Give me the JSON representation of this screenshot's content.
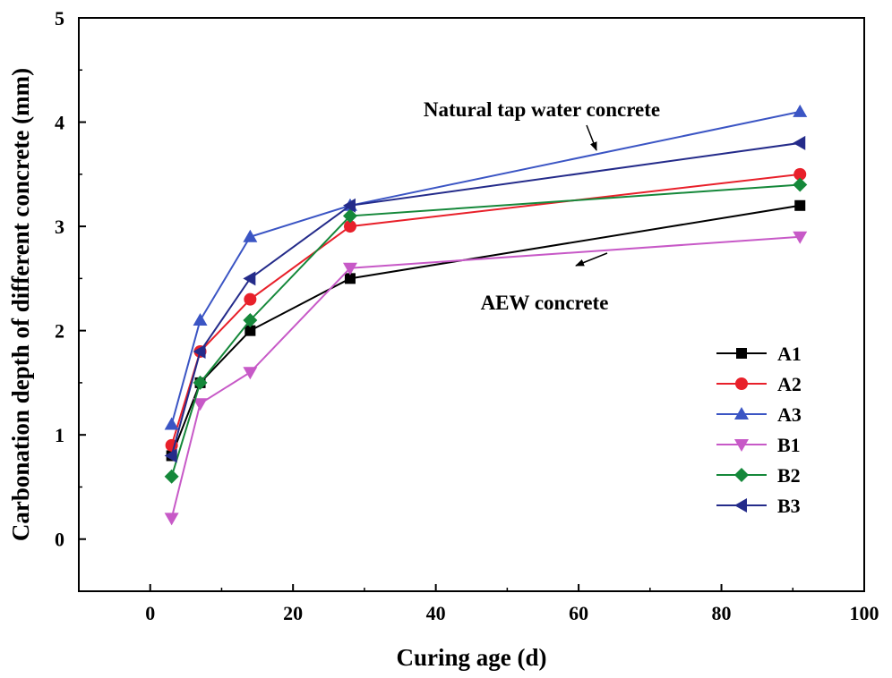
{
  "chart_data": {
    "type": "line",
    "title": "",
    "xlabel": "Curing age (d)",
    "ylabel": "Carbonation depth of different concrete (mm)",
    "xlim": [
      -10,
      100
    ],
    "ylim": [
      -0.5,
      5
    ],
    "xticks": [
      0,
      20,
      40,
      60,
      80,
      100
    ],
    "yticks": [
      0,
      1,
      2,
      3,
      4,
      5
    ],
    "grid": false,
    "legend_position": "lower-right",
    "x": [
      3,
      7,
      14,
      28,
      91
    ],
    "series": [
      {
        "name": "A1",
        "marker": "square",
        "color": "#000000",
        "values": [
          0.8,
          1.5,
          2.0,
          2.5,
          3.2
        ]
      },
      {
        "name": "A2",
        "marker": "circle",
        "color": "#e8202a",
        "values": [
          0.9,
          1.8,
          2.3,
          3.0,
          3.5
        ]
      },
      {
        "name": "A3",
        "marker": "triangle-up",
        "color": "#3b55c4",
        "values": [
          1.1,
          2.1,
          2.9,
          3.2,
          4.1
        ]
      },
      {
        "name": "B1",
        "marker": "triangle-down",
        "color": "#c759c7",
        "values": [
          0.2,
          1.3,
          1.6,
          2.6,
          2.9
        ]
      },
      {
        "name": "B2",
        "marker": "diamond",
        "color": "#15883a",
        "values": [
          0.6,
          1.5,
          2.1,
          3.1,
          3.4
        ]
      },
      {
        "name": "B3",
        "marker": "triangle-left",
        "color": "#242b8a",
        "values": [
          0.8,
          1.8,
          2.5,
          3.2,
          3.8
        ]
      }
    ],
    "annotations": [
      {
        "text": "Natural tap water concrete",
        "arrow_to": [
          62,
          3.8
        ]
      },
      {
        "text": "AEW concrete",
        "arrow_to": [
          62,
          2.6
        ]
      }
    ]
  }
}
